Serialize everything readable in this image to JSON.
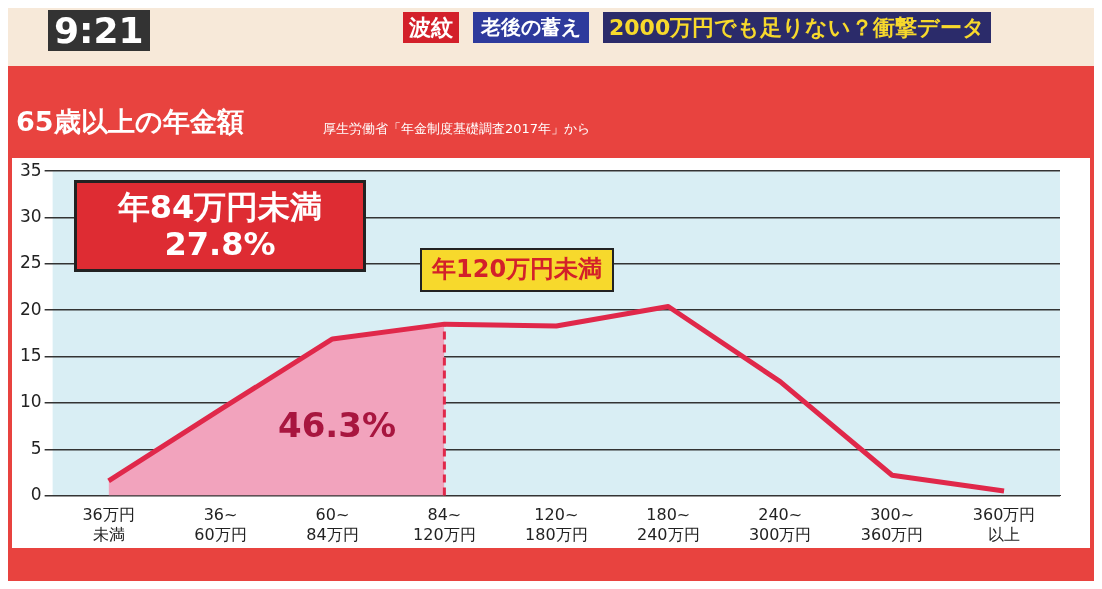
{
  "chart_data": {
    "type": "line",
    "title": "65歳以上の年金額",
    "subtitle": "厚生労働省「年金制度基礎調査2017年」から",
    "categories": [
      "36万円未満",
      "36~60万円",
      "60~84万円",
      "84~120万円",
      "120~180万円",
      "180~240万円",
      "240~300万円",
      "300~360万円",
      "360万円以上"
    ],
    "series": [
      {
        "type": "area",
        "color": "#f2a3bd",
        "values": [
          1.6,
          9.3,
          16.9,
          18.5,
          null,
          null,
          null,
          null,
          null
        ]
      },
      {
        "type": "line",
        "color": "#e0284a",
        "values": [
          1.6,
          9.3,
          16.9,
          18.5,
          18.3,
          20.4,
          12.3,
          2.2,
          0.5
        ]
      }
    ],
    "ylim": [
      0,
      35
    ],
    "yticks": [
      0,
      5,
      10,
      15,
      20,
      25,
      30,
      35
    ],
    "grid": "y",
    "legend": false,
    "marker": "none",
    "line_style": "solid",
    "ref_lines": [
      {
        "axis": "x",
        "value": "84~120万円",
        "color": "#e0284a",
        "line_style": "dashed"
      }
    ],
    "annotations": [
      "9:21",
      "波紋",
      "老後の蓄え",
      "2000万円でも足りない？衝撃データ",
      "年84万円未満\n27.8%",
      "年120万円未満",
      "46.3%"
    ]
  }
}
